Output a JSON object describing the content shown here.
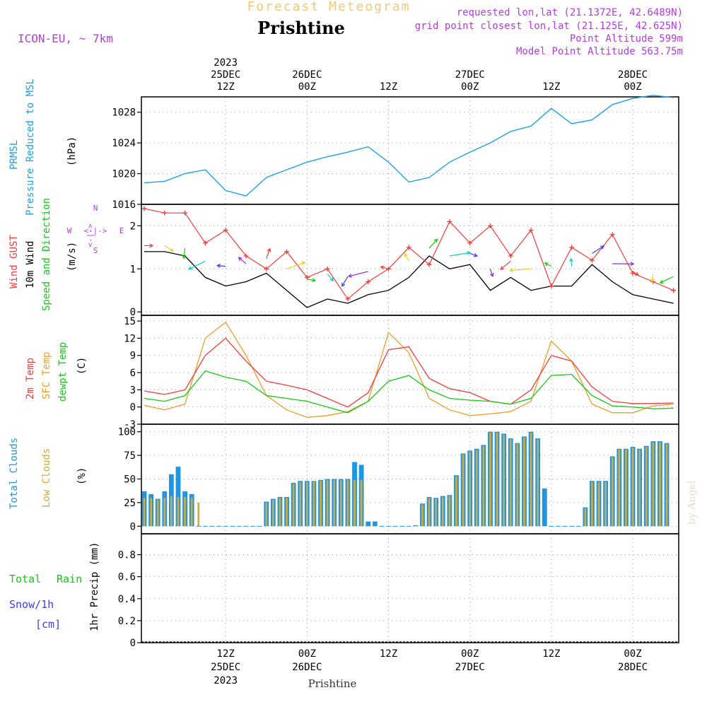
{
  "header": {
    "title_faint": "Forecast Meteogram",
    "location": "Prishtine",
    "model": "ICON-EU, ~ 7km",
    "requested": "requested lon,lat (21.1372E, 42.6489N)",
    "gridpoint": "grid point closest lon,lat (21.125E, 42.625N)",
    "point_alt": "Point Altitude 599m",
    "model_alt": "Model Point Altitude 563.75m"
  },
  "top_time_labels": [
    {
      "day": "2023",
      "date": "25DEC",
      "hour": "12Z"
    },
    {
      "day": "",
      "date": "26DEC",
      "hour": "00Z"
    },
    {
      "day": "",
      "date": "",
      "hour": "12Z"
    },
    {
      "day": "",
      "date": "27DEC",
      "hour": "00Z"
    },
    {
      "day": "",
      "date": "",
      "hour": "12Z"
    },
    {
      "day": "",
      "date": "28DEC",
      "hour": "00Z"
    }
  ],
  "bottom_time_labels": [
    {
      "hour": "12Z",
      "date": "25DEC",
      "year": "2023"
    },
    {
      "hour": "00Z",
      "date": "26DEC",
      "year": ""
    },
    {
      "hour": "12Z",
      "date": "",
      "year": ""
    },
    {
      "hour": "00Z",
      "date": "27DEC",
      "year": ""
    },
    {
      "hour": "12Z",
      "date": "",
      "year": ""
    },
    {
      "hour": "00Z",
      "date": "28DEC",
      "year": ""
    }
  ],
  "footer_label": "Prishtine",
  "watermark": "by Angel",
  "panels": {
    "pressure": {
      "label1": "PRMSL",
      "label2": "Pressure Reduced to MSL",
      "unit": "(hPa)",
      "ticks": [
        "1016",
        "1020",
        "1024",
        "1028"
      ]
    },
    "wind": {
      "label1": "Wind GUST",
      "label2": "10m Wind",
      "label3": "Speed and Direction",
      "unit": "(m/s)",
      "ticks": [
        "0",
        "1",
        "2"
      ],
      "compass": {
        "w": "W",
        "e": "E",
        "n": "N",
        "s": "S",
        "arrow": "<-|->"
      }
    },
    "temp": {
      "label1": "2m Temp",
      "label2": "SFC Temp",
      "label3": "dewpt Temp",
      "unit": "(C)",
      "ticks": [
        "-3",
        "0",
        "3",
        "6",
        "9",
        "12",
        "15"
      ]
    },
    "clouds": {
      "label1": "Total Clouds",
      "label2": "Low Clouds",
      "unit": "(%)",
      "ticks": [
        "0",
        "25",
        "50",
        "75",
        "100"
      ]
    },
    "precip": {
      "label1": "Total",
      "label2": "Rain",
      "label3": "Snow/1h",
      "label4": "[cm]",
      "unit": "1hr Precip (mm)",
      "ticks": [
        "0",
        "0.2",
        "0.4",
        "0.6",
        "0.8"
      ]
    }
  },
  "colors": {
    "pressure": "#1ea0e6",
    "gust": "#f03c3c",
    "wind": "#000000",
    "t2m": "#f03c3c",
    "sfc": "#e6a028",
    "dewpt": "#14c814",
    "total_cloud": "#1e96e6",
    "low_cloud": "#d2aa3c",
    "rain": "#14c814",
    "snow": "#3c3cf0",
    "header_meta": "#b43cdc",
    "faint_title": "#f0c878"
  },
  "chart_data": [
    {
      "type": "line",
      "title": "PRMSL Pressure Reduced to MSL",
      "ylabel": "(hPa)",
      "ylim": [
        1016,
        1030
      ],
      "x_hours": [
        0,
        3,
        6,
        9,
        12,
        15,
        18,
        21,
        24,
        27,
        30,
        33,
        36,
        39,
        42,
        45,
        48,
        51,
        54,
        57,
        60,
        63,
        66,
        69,
        72,
        75,
        78
      ],
      "series": [
        {
          "name": "PRMSL",
          "values": [
            1018.8,
            1019.0,
            1020.0,
            1020.5,
            1017.8,
            1017.1,
            1019.5,
            1020.5,
            1021.5,
            1022.2,
            1022.8,
            1023.5,
            1021.5,
            1018.9,
            1019.5,
            1021.5,
            1022.8,
            1024.0,
            1025.5,
            1026.2,
            1028.5,
            1026.5,
            1027.0,
            1029.0,
            1029.8,
            1030.2,
            1029.9
          ]
        }
      ]
    },
    {
      "type": "line",
      "title": "Wind GUST / 10m Wind Speed and Direction",
      "ylabel": "(m/s)",
      "ylim": [
        0,
        2.5
      ],
      "x_hours": [
        0,
        3,
        6,
        9,
        12,
        15,
        18,
        21,
        24,
        27,
        30,
        33,
        36,
        39,
        42,
        45,
        48,
        51,
        54,
        57,
        60,
        63,
        66,
        69,
        72,
        75,
        78
      ],
      "series": [
        {
          "name": "Wind GUST",
          "values": [
            2.4,
            2.3,
            2.3,
            1.6,
            1.9,
            1.3,
            1.0,
            1.4,
            0.8,
            1.0,
            0.3,
            0.7,
            1.0,
            1.5,
            1.1,
            2.1,
            1.6,
            2.0,
            1.3,
            1.9,
            0.6,
            1.5,
            1.2,
            1.8,
            0.9,
            0.7,
            0.5
          ]
        },
        {
          "name": "10m Wind",
          "values": [
            1.4,
            1.4,
            1.3,
            0.8,
            0.6,
            0.7,
            0.9,
            0.5,
            0.1,
            0.3,
            0.2,
            0.4,
            0.5,
            0.8,
            1.3,
            1.0,
            1.1,
            0.5,
            0.8,
            0.5,
            0.6,
            0.6,
            1.1,
            0.7,
            0.4,
            0.3,
            0.2
          ]
        }
      ]
    },
    {
      "type": "line",
      "title": "2m Temp / SFC Temp / dewpt Temp",
      "ylabel": "(C)",
      "ylim": [
        -3,
        15
      ],
      "x_hours": [
        0,
        3,
        6,
        9,
        12,
        15,
        18,
        21,
        24,
        27,
        30,
        33,
        36,
        39,
        42,
        45,
        48,
        51,
        54,
        57,
        60,
        63,
        66,
        69,
        72,
        75,
        78
      ],
      "series": [
        {
          "name": "2m Temp",
          "values": [
            2.8,
            2.2,
            3.0,
            9.0,
            12.0,
            8.0,
            4.5,
            3.8,
            3.0,
            1.5,
            0.0,
            2.5,
            10.0,
            10.5,
            5.0,
            3.2,
            2.5,
            1.0,
            0.5,
            3.0,
            9.0,
            8.0,
            3.5,
            1.0,
            0.6,
            0.6,
            0.7
          ]
        },
        {
          "name": "SFC Temp",
          "values": [
            0.3,
            -0.5,
            0.5,
            12.0,
            14.8,
            9.0,
            2.0,
            -0.5,
            -1.8,
            -1.5,
            -0.8,
            1.0,
            13.0,
            9.5,
            1.5,
            -0.5,
            -1.5,
            -1.2,
            -0.8,
            1.0,
            11.5,
            8.0,
            0.5,
            -1.0,
            -1.0,
            0.2,
            0.5
          ]
        },
        {
          "name": "dewpt Temp",
          "values": [
            1.5,
            1.0,
            2.0,
            6.3,
            5.2,
            4.5,
            2.0,
            1.5,
            1.0,
            0.0,
            -1.0,
            1.0,
            4.5,
            5.5,
            3.0,
            1.5,
            1.2,
            1.0,
            0.5,
            1.5,
            5.5,
            5.7,
            2.0,
            0.2,
            0.0,
            -0.3,
            -0.2
          ]
        }
      ]
    },
    {
      "type": "bar",
      "title": "Total Clouds / Low Clouds",
      "ylabel": "(%)",
      "ylim": [
        0,
        100
      ],
      "x_hours": [
        0,
        1,
        2,
        3,
        4,
        5,
        6,
        7,
        8,
        9,
        10,
        11,
        12,
        13,
        14,
        15,
        16,
        17,
        18,
        19,
        20,
        21,
        22,
        23,
        24,
        25,
        26,
        27,
        28,
        29,
        30,
        31,
        32,
        33,
        34,
        35,
        36,
        37,
        38,
        39,
        40,
        41,
        42,
        43,
        44,
        45,
        46,
        47,
        48,
        49,
        50,
        51,
        52,
        53,
        54,
        55,
        56,
        57,
        58,
        59,
        60,
        61,
        62,
        63,
        64,
        65,
        66,
        67,
        68,
        69,
        70,
        71,
        72,
        73,
        74,
        75,
        76,
        77
      ],
      "series": [
        {
          "name": "Total Clouds",
          "values": [
            37,
            34,
            29,
            37,
            55,
            63,
            37,
            34,
            0,
            0,
            0,
            0,
            0,
            0,
            0,
            0,
            0,
            0,
            26,
            29,
            31,
            31,
            46,
            48,
            48,
            48,
            49,
            50,
            50,
            50,
            50,
            68,
            65,
            5,
            5,
            0,
            0,
            0,
            0,
            0,
            1,
            24,
            31,
            30,
            32,
            33,
            54,
            77,
            80,
            82,
            86,
            100,
            100,
            98,
            93,
            88,
            95,
            100,
            93,
            40,
            0,
            0,
            0,
            0,
            0,
            20,
            48,
            48,
            48,
            74,
            82,
            82,
            84,
            82,
            85,
            90,
            90,
            88
          ]
        },
        {
          "name": "Low Clouds",
          "values": [
            30,
            30,
            28,
            30,
            32,
            31,
            31,
            30,
            25,
            0,
            0,
            0,
            0,
            0,
            0,
            0,
            0,
            0,
            25,
            28,
            30,
            30,
            45,
            47,
            47,
            48,
            48,
            49,
            49,
            49,
            49,
            49,
            49,
            0,
            0,
            0,
            0,
            0,
            0,
            0,
            0,
            23,
            30,
            29,
            31,
            32,
            53,
            76,
            79,
            81,
            85,
            99,
            99,
            97,
            92,
            87,
            94,
            99,
            92,
            0,
            0,
            0,
            0,
            0,
            0,
            19,
            47,
            47,
            47,
            73,
            81,
            81,
            83,
            81,
            84,
            89,
            89,
            87
          ]
        }
      ]
    },
    {
      "type": "bar",
      "title": "Total Rain / Snow/1h [cm]",
      "ylabel": "1hr Precip (mm)",
      "ylim": [
        0,
        1.0
      ],
      "series": [
        {
          "name": "Total Rain",
          "values": [
            0
          ]
        },
        {
          "name": "Snow/1h [cm]",
          "values": [
            0
          ]
        }
      ]
    }
  ]
}
